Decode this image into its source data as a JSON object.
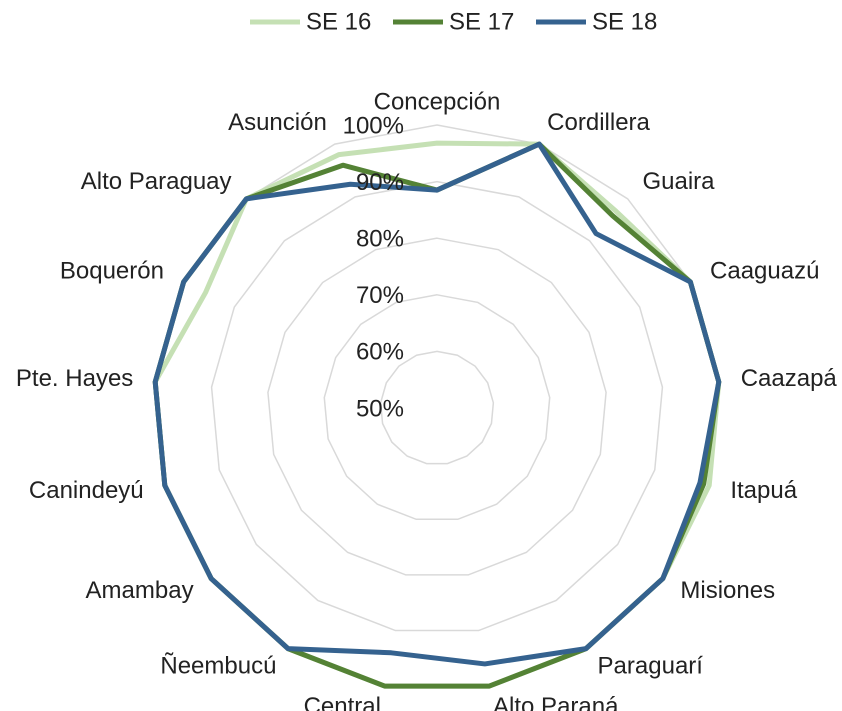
{
  "chart_data": {
    "type": "radar",
    "categories": [
      "Concepción",
      "Cordillera",
      "Guaira",
      "Caaguazú",
      "Caazapá",
      "Itapuá",
      "Misiones",
      "Paraguarí",
      "Alto Paraná",
      "Central",
      "Ñeembucú",
      "Amambay",
      "Canindeyú",
      "Pte. Hayes",
      "Boquerón",
      "Alto Paraguay",
      "Asunción"
    ],
    "series": [
      {
        "name": "SE 16",
        "color": "#c5e0b4",
        "values": [
          96.8,
          100,
          97,
          100,
          100,
          100,
          100,
          100,
          100,
          100,
          100,
          100,
          100,
          100,
          95.7,
          100,
          98
        ]
      },
      {
        "name": "SE 17",
        "color": "#548235",
        "values": [
          88.5,
          100,
          96,
          100,
          100,
          99,
          100,
          100,
          100,
          100,
          100,
          100,
          100,
          100,
          100,
          100,
          96
        ]
      },
      {
        "name": "SE 18",
        "color": "#35628f",
        "values": [
          88.5,
          100,
          91.7,
          100,
          100,
          98.3,
          100,
          100,
          96,
          94,
          100,
          100,
          100,
          100,
          100,
          100,
          92.4
        ]
      }
    ],
    "ylim": [
      50,
      100
    ],
    "yticks": [
      {
        "value": 50,
        "label": "50%"
      },
      {
        "value": 60,
        "label": "60%"
      },
      {
        "value": 70,
        "label": "70%"
      },
      {
        "value": 80,
        "label": "80%"
      },
      {
        "value": 90,
        "label": "90%"
      },
      {
        "value": 100,
        "label": "100%"
      }
    ],
    "grid": true,
    "legend": "top"
  }
}
